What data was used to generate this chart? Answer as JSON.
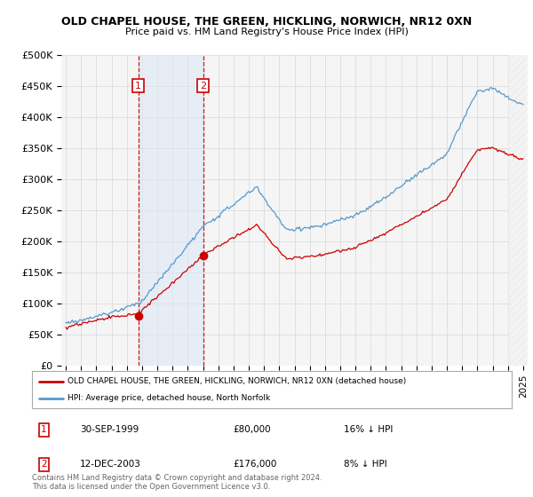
{
  "title": "OLD CHAPEL HOUSE, THE GREEN, HICKLING, NORWICH, NR12 0XN",
  "subtitle": "Price paid vs. HM Land Registry's House Price Index (HPI)",
  "ylabel_ticks": [
    "£0",
    "£50K",
    "£100K",
    "£150K",
    "£200K",
    "£250K",
    "£300K",
    "£350K",
    "£400K",
    "£450K",
    "£500K"
  ],
  "ylim": [
    0,
    500000
  ],
  "xlim_start": 1994.7,
  "xlim_end": 2025.3,
  "sale1_date": 1999.75,
  "sale1_price": 80000,
  "sale1_label": "1",
  "sale1_hpi_diff": "16% ↓ HPI",
  "sale1_date_str": "30-SEP-1999",
  "sale2_date": 2004.0,
  "sale2_price": 176000,
  "sale2_label": "2",
  "sale2_hpi_diff": "8% ↓ HPI",
  "sale2_date_str": "12-DEC-2003",
  "red_line_color": "#cc0000",
  "blue_line_color": "#5599cc",
  "legend_label1": "OLD CHAPEL HOUSE, THE GREEN, HICKLING, NORWICH, NR12 0XN (detached house)",
  "legend_label2": "HPI: Average price, detached house, North Norfolk",
  "footer": "Contains HM Land Registry data © Crown copyright and database right 2024.\nThis data is licensed under the Open Government Licence v3.0.",
  "bg_color": "#f5f5f5",
  "shade_color": "#dce8f5",
  "grid_color": "#cccccc",
  "sale_box_color": "#cc0000",
  "hatch_bg": "#e8e8e8"
}
